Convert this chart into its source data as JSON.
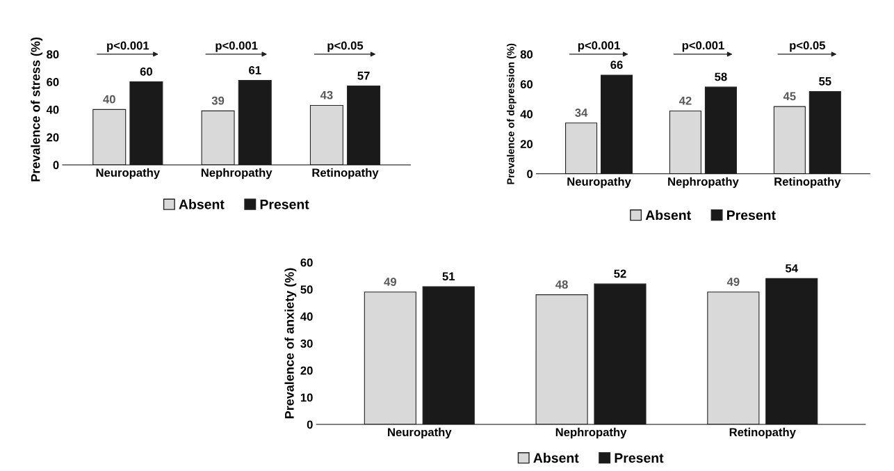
{
  "chart_data": [
    {
      "type": "bar",
      "ylabel": "Prevalence of stress (%)",
      "categories": [
        "Neuropathy",
        "Nephropathy",
        "Retinopathy"
      ],
      "series": [
        {
          "name": "Absent",
          "color": "#d9d9d9",
          "values": [
            40,
            39,
            43
          ]
        },
        {
          "name": "Present",
          "color": "#1a1a1a",
          "values": [
            60,
            61,
            57
          ]
        }
      ],
      "ylim": [
        0,
        80
      ],
      "yticks": [
        0,
        20,
        40,
        60,
        80
      ],
      "data_labels": true,
      "legend": "bottom",
      "grid": false,
      "annotations": [
        "p<0.001",
        "p<0.001",
        "p<0.05"
      ]
    },
    {
      "type": "bar",
      "ylabel": "Prevalence of depression (%)",
      "categories": [
        "Neuropathy",
        "Nephropathy",
        "Retinopathy"
      ],
      "series": [
        {
          "name": "Absent",
          "color": "#d9d9d9",
          "values": [
            34,
            42,
            45
          ]
        },
        {
          "name": "Present",
          "color": "#1a1a1a",
          "values": [
            66,
            58,
            55
          ]
        }
      ],
      "ylim": [
        0,
        80
      ],
      "yticks": [
        0,
        20,
        40,
        60,
        80
      ],
      "data_labels": true,
      "legend": "bottom",
      "grid": false,
      "annotations": [
        "p<0.001",
        "p<0.001",
        "p<0.05"
      ]
    },
    {
      "type": "bar",
      "ylabel": "Prevalence of anxiety (%)",
      "categories": [
        "Neuropathy",
        "Nephropathy",
        "Retinopathy"
      ],
      "series": [
        {
          "name": "Absent",
          "color": "#d9d9d9",
          "values": [
            49,
            48,
            49
          ]
        },
        {
          "name": "Present",
          "color": "#1a1a1a",
          "values": [
            51,
            52,
            54
          ]
        }
      ],
      "ylim": [
        0,
        60
      ],
      "yticks": [
        0,
        10,
        20,
        30,
        40,
        50,
        60
      ],
      "data_labels": true,
      "legend": "bottom",
      "grid": false
    }
  ]
}
